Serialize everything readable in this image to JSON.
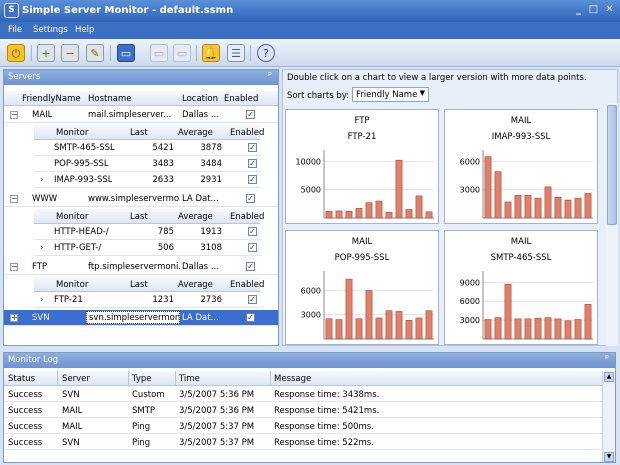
{
  "window": {
    "title": "Simple Server Monitor - default.ssmn"
  },
  "menu": [
    "File",
    "Settings",
    "Help"
  ],
  "servers_panel": {
    "title": "Servers",
    "columns": [
      "FriendlyName",
      "Hostname",
      "Location",
      "Enabled"
    ],
    "monitor_columns": [
      "Monitor",
      "Last",
      "Average",
      "Enabled"
    ],
    "groups": [
      {
        "name": "MAIL",
        "hostname": "mail.simpleserver...",
        "location": "Dallas ...",
        "monitors": [
          {
            "name": "SMTP-465-SSL",
            "last": "5421",
            "average": "3878"
          },
          {
            "name": "POP-995-SSL",
            "last": "3483",
            "average": "3484"
          },
          {
            "name": "IMAP-993-SSL",
            "last": "2633",
            "average": "2931"
          }
        ]
      },
      {
        "name": "WWW",
        "hostname": "www.simpleservermo...",
        "location": "LA Dat...",
        "monitors": [
          {
            "name": "HTTP-HEAD-/",
            "last": "785",
            "average": "1913"
          },
          {
            "name": "HTTP-GET-/",
            "last": "506",
            "average": "3108"
          }
        ]
      },
      {
        "name": "FTP",
        "hostname": "ftp.simpleservermoni...",
        "location": "Dallas ...",
        "monitors": [
          {
            "name": "FTP-21",
            "last": "1231",
            "average": "2736"
          }
        ]
      },
      {
        "name": "SVN",
        "hostname": "svn.simpleservermoni...",
        "location": "LA Dat...",
        "monitors": []
      }
    ]
  },
  "charts_panel": {
    "info": "Double click on a chart to view a larger version with more data points.",
    "sort_label": "Sort charts by:",
    "sort_value": "Friendly Name"
  },
  "chart_data": [
    {
      "type": "bar",
      "title": "FTP",
      "subtitle": "FTP-21",
      "y_ticks": [
        5000,
        10000
      ],
      "ylim": [
        0,
        12000
      ],
      "values": [
        1200,
        1250,
        1200,
        1700,
        2700,
        3000,
        1000,
        10200,
        1500,
        3900,
        1100
      ]
    },
    {
      "type": "bar",
      "title": "MAIL",
      "subtitle": "IMAP-993-SSL",
      "y_ticks": [
        3000,
        6000
      ],
      "ylim": [
        0,
        7200
      ],
      "values": [
        6500,
        4900,
        1700,
        2400,
        2400,
        2100,
        3300,
        2200,
        1900,
        2100,
        2600
      ]
    },
    {
      "type": "bar",
      "title": "MAIL",
      "subtitle": "POP-995-SSL",
      "y_ticks": [
        3000,
        6000
      ],
      "ylim": [
        0,
        8400
      ],
      "values": [
        2500,
        2400,
        7400,
        2500,
        6000,
        2600,
        3500,
        3400,
        2300,
        2600,
        3500
      ]
    },
    {
      "type": "bar",
      "title": "MAIL",
      "subtitle": "SMTP-465-SSL",
      "y_ticks": [
        3000,
        6000,
        9000
      ],
      "ylim": [
        0,
        10800
      ],
      "values": [
        3100,
        3400,
        8700,
        3200,
        3200,
        3300,
        3400,
        3200,
        2900,
        3100,
        5500
      ]
    }
  ],
  "log_panel": {
    "title": "Monitor Log",
    "columns": [
      "Status",
      "Server",
      "Type",
      "Time",
      "Message"
    ],
    "rows": [
      {
        "status": "Success",
        "server": "SVN",
        "type": "Custom",
        "time": "3/5/2007 5:36 PM",
        "message": "Response time: 3438ms."
      },
      {
        "status": "Success",
        "server": "MAIL",
        "type": "SMTP",
        "time": "3/5/2007 5:36 PM",
        "message": "Response time: 5421ms."
      },
      {
        "status": "Success",
        "server": "MAIL",
        "type": "Ping",
        "time": "3/5/2007 5:37 PM",
        "message": "Response time: 500ms."
      },
      {
        "status": "Success",
        "server": "SVN",
        "type": "Ping",
        "time": "3/5/2007 5:37 PM",
        "message": "Response time: 522ms."
      }
    ]
  },
  "colors": {
    "bar_fill": "#e07f6a",
    "bar_stroke": "#a84a3a",
    "selection": "#3a6fd0",
    "title_bar": "#2f63b8"
  },
  "icons": [
    "power-icon",
    "add-server-icon",
    "remove-server-icon",
    "edit-server-icon",
    "monitor-icon",
    "bell-icon",
    "log-icon",
    "help-icon"
  ]
}
